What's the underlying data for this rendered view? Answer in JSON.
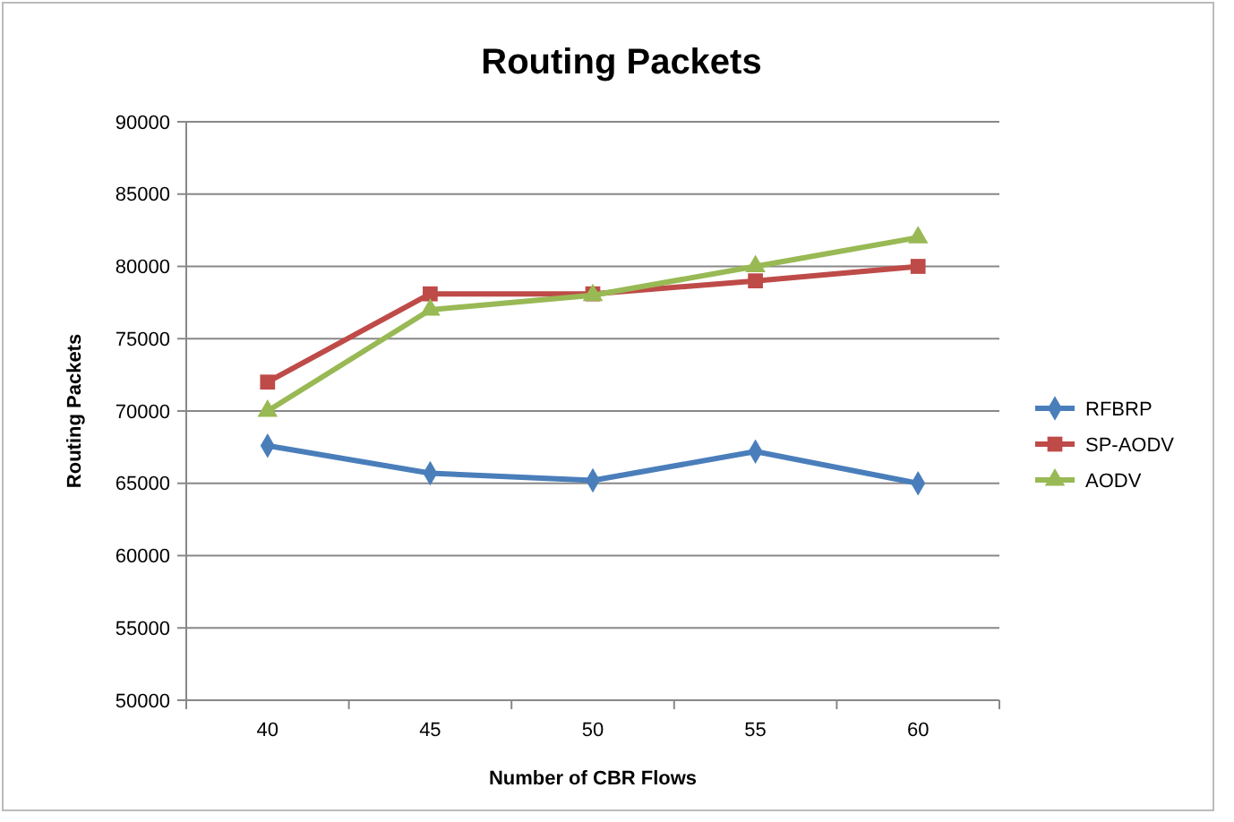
{
  "chart_data": {
    "type": "line",
    "title": "Routing Packets",
    "xlabel": "Number of CBR Flows",
    "ylabel": "Routing Packets",
    "categories": [
      "40",
      "45",
      "50",
      "55",
      "60"
    ],
    "ylim": [
      50000,
      90000
    ],
    "yticks": [
      50000,
      55000,
      60000,
      65000,
      70000,
      75000,
      80000,
      85000,
      90000
    ],
    "grid": "y",
    "legend": "right",
    "series": [
      {
        "name": "RFBRP",
        "color": "#4a7ebb",
        "marker": "diamond",
        "values": [
          67600,
          65700,
          65200,
          67200,
          65000
        ]
      },
      {
        "name": "SP-AODV",
        "color": "#be4b48",
        "marker": "square",
        "values": [
          72000,
          78100,
          78100,
          79000,
          80000
        ]
      },
      {
        "name": "AODV",
        "color": "#98b954",
        "marker": "triangle",
        "values": [
          70000,
          77000,
          78000,
          80000,
          82000
        ]
      }
    ]
  }
}
